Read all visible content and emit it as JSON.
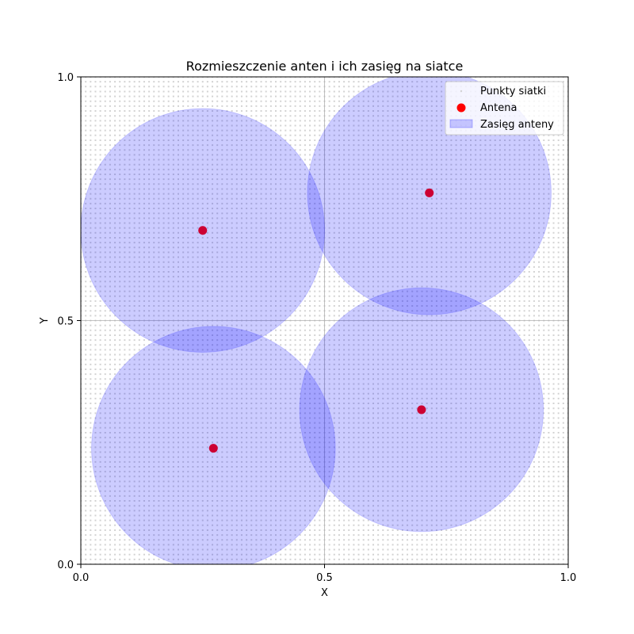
{
  "chart_data": {
    "type": "scatter",
    "title": "Rozmieszczenie anten i ich zasięg na siatce",
    "xlabel": "X",
    "ylabel": "Y",
    "xlim": [
      0.0,
      1.0
    ],
    "ylim": [
      0.0,
      1.0
    ],
    "xticks": [
      0.0,
      0.5,
      1.0
    ],
    "yticks": [
      0.0,
      0.5,
      1.0
    ],
    "xtick_labels": [
      "0.0",
      "0.5",
      "1.0"
    ],
    "ytick_labels": [
      "0.0",
      "0.5",
      "1.0"
    ],
    "grid": true,
    "legend_position": "top-right",
    "grid_points": {
      "name": "Punkty siatki",
      "spacing": 0.01,
      "range": [
        0.0,
        1.0
      ],
      "color": "#d3d3d3"
    },
    "antennas": {
      "name": "Antena",
      "color": "#ff0000",
      "points": [
        {
          "x": 0.25,
          "y": 0.685
        },
        {
          "x": 0.715,
          "y": 0.762
        },
        {
          "x": 0.272,
          "y": 0.238
        },
        {
          "x": 0.699,
          "y": 0.317
        }
      ]
    },
    "coverage": {
      "name": "Zasięg anteny",
      "radius": 0.25,
      "color": "#0000ff",
      "alpha": 0.2
    }
  }
}
